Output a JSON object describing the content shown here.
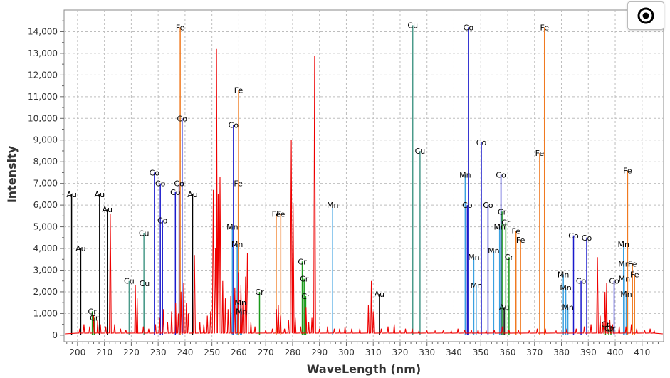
{
  "chart_data": {
    "type": "line",
    "xlabel": "WaveLength (nm)",
    "ylabel": "Intensity",
    "xlim": [
      195,
      418
    ],
    "ylim": [
      -300,
      15000
    ],
    "x_ticks": [
      200,
      210,
      220,
      230,
      240,
      250,
      260,
      270,
      280,
      290,
      300,
      310,
      320,
      330,
      340,
      350,
      360,
      370,
      380,
      390,
      400,
      410
    ],
    "y_ticks": [
      0,
      1000,
      2000,
      3000,
      4000,
      5000,
      6000,
      7000,
      8000,
      9000,
      10000,
      11000,
      12000,
      13000,
      14000
    ],
    "y_tick_labels": [
      "0",
      "1,000",
      "2,000",
      "3,000",
      "4,000",
      "5,000",
      "6,000",
      "7,000",
      "8,000",
      "9,000",
      "10,000",
      "11,000",
      "12,000",
      "13,000",
      "14,000"
    ],
    "grid": true,
    "element_colors": {
      "Au": "#000000",
      "Cr": "#1a9a1a",
      "Cu": "#4a9a8a",
      "Co": "#1a1acc",
      "Mn": "#3aa0e0",
      "Fe": "#f07a20"
    },
    "spectrum_color": "#ee0000",
    "spectrum_peaks": [
      {
        "x": 200.8,
        "y": 300
      },
      {
        "x": 202.4,
        "y": 500
      },
      {
        "x": 204.5,
        "y": 400
      },
      {
        "x": 206.0,
        "y": 900
      },
      {
        "x": 207.5,
        "y": 700
      },
      {
        "x": 208.5,
        "y": 500
      },
      {
        "x": 210.5,
        "y": 400
      },
      {
        "x": 212.2,
        "y": 5600
      },
      {
        "x": 213.8,
        "y": 500
      },
      {
        "x": 216.0,
        "y": 300
      },
      {
        "x": 218.0,
        "y": 250
      },
      {
        "x": 221.5,
        "y": 2300
      },
      {
        "x": 222.2,
        "y": 1700
      },
      {
        "x": 224.5,
        "y": 400
      },
      {
        "x": 226.5,
        "y": 300
      },
      {
        "x": 229.0,
        "y": 500
      },
      {
        "x": 230.5,
        "y": 800
      },
      {
        "x": 232.0,
        "y": 1200
      },
      {
        "x": 233.5,
        "y": 600
      },
      {
        "x": 235.0,
        "y": 1100
      },
      {
        "x": 236.5,
        "y": 1500
      },
      {
        "x": 237.5,
        "y": 1000
      },
      {
        "x": 238.5,
        "y": 2000
      },
      {
        "x": 239.5,
        "y": 2400
      },
      {
        "x": 240.5,
        "y": 1500
      },
      {
        "x": 241.2,
        "y": 1000
      },
      {
        "x": 243.5,
        "y": 3700
      },
      {
        "x": 245.5,
        "y": 600
      },
      {
        "x": 247.0,
        "y": 500
      },
      {
        "x": 248.3,
        "y": 900
      },
      {
        "x": 249.5,
        "y": 1100
      },
      {
        "x": 250.5,
        "y": 6700
      },
      {
        "x": 251.3,
        "y": 4000
      },
      {
        "x": 251.7,
        "y": 13200
      },
      {
        "x": 252.3,
        "y": 6500
      },
      {
        "x": 253.0,
        "y": 7300
      },
      {
        "x": 254.0,
        "y": 2500
      },
      {
        "x": 255.0,
        "y": 1700
      },
      {
        "x": 256.0,
        "y": 1200
      },
      {
        "x": 257.0,
        "y": 1800
      },
      {
        "x": 258.5,
        "y": 2200
      },
      {
        "x": 259.8,
        "y": 2900
      },
      {
        "x": 260.8,
        "y": 2300
      },
      {
        "x": 261.5,
        "y": 1500
      },
      {
        "x": 262.5,
        "y": 2700
      },
      {
        "x": 263.2,
        "y": 3800
      },
      {
        "x": 264.5,
        "y": 600
      },
      {
        "x": 266.0,
        "y": 400
      },
      {
        "x": 270.0,
        "y": 250
      },
      {
        "x": 272.5,
        "y": 300
      },
      {
        "x": 274.0,
        "y": 1200
      },
      {
        "x": 274.7,
        "y": 1400
      },
      {
        "x": 275.5,
        "y": 900
      },
      {
        "x": 277.0,
        "y": 300
      },
      {
        "x": 278.5,
        "y": 700
      },
      {
        "x": 279.5,
        "y": 9000
      },
      {
        "x": 280.2,
        "y": 6100
      },
      {
        "x": 281.0,
        "y": 800
      },
      {
        "x": 283.0,
        "y": 400
      },
      {
        "x": 285.0,
        "y": 1300
      },
      {
        "x": 286.0,
        "y": 600
      },
      {
        "x": 287.2,
        "y": 800
      },
      {
        "x": 288.2,
        "y": 12900
      },
      {
        "x": 290.0,
        "y": 300
      },
      {
        "x": 293.0,
        "y": 400
      },
      {
        "x": 295.5,
        "y": 300
      },
      {
        "x": 297.5,
        "y": 300
      },
      {
        "x": 299.5,
        "y": 400
      },
      {
        "x": 302.0,
        "y": 300
      },
      {
        "x": 305.0,
        "y": 300
      },
      {
        "x": 308.2,
        "y": 1400
      },
      {
        "x": 309.3,
        "y": 2500
      },
      {
        "x": 310.0,
        "y": 1100
      },
      {
        "x": 313.0,
        "y": 300
      },
      {
        "x": 315.5,
        "y": 400
      },
      {
        "x": 317.8,
        "y": 500
      },
      {
        "x": 320.0,
        "y": 200
      },
      {
        "x": 322.0,
        "y": 300
      },
      {
        "x": 324.5,
        "y": 300
      },
      {
        "x": 327.0,
        "y": 200
      },
      {
        "x": 330.0,
        "y": 200
      },
      {
        "x": 333.0,
        "y": 200
      },
      {
        "x": 336.0,
        "y": 200
      },
      {
        "x": 339.0,
        "y": 200
      },
      {
        "x": 341.5,
        "y": 300
      },
      {
        "x": 344.0,
        "y": 250
      },
      {
        "x": 346.5,
        "y": 250
      },
      {
        "x": 349.0,
        "y": 250
      },
      {
        "x": 352.0,
        "y": 200
      },
      {
        "x": 355.0,
        "y": 250
      },
      {
        "x": 358.0,
        "y": 400
      },
      {
        "x": 360.5,
        "y": 250
      },
      {
        "x": 364.0,
        "y": 250
      },
      {
        "x": 368.0,
        "y": 200
      },
      {
        "x": 371.0,
        "y": 300
      },
      {
        "x": 374.0,
        "y": 300
      },
      {
        "x": 378.0,
        "y": 200
      },
      {
        "x": 382.0,
        "y": 300
      },
      {
        "x": 385.5,
        "y": 300
      },
      {
        "x": 388.5,
        "y": 400
      },
      {
        "x": 391.0,
        "y": 500
      },
      {
        "x": 393.4,
        "y": 3600
      },
      {
        "x": 394.4,
        "y": 900
      },
      {
        "x": 395.5,
        "y": 600
      },
      {
        "x": 396.2,
        "y": 2000
      },
      {
        "x": 396.8,
        "y": 2400
      },
      {
        "x": 398.0,
        "y": 700
      },
      {
        "x": 399.0,
        "y": 500
      },
      {
        "x": 401.5,
        "y": 400
      },
      {
        "x": 404.0,
        "y": 400
      },
      {
        "x": 406.0,
        "y": 500
      },
      {
        "x": 408.0,
        "y": 300
      },
      {
        "x": 411.0,
        "y": 200
      },
      {
        "x": 413.0,
        "y": 300
      },
      {
        "x": 414.5,
        "y": 200
      }
    ],
    "spectral_lines": [
      {
        "element": "Au",
        "x": 197.8,
        "y": 6500
      },
      {
        "element": "Au",
        "x": 201.2,
        "y": 4000
      },
      {
        "element": "Cr",
        "x": 205.5,
        "y": 1100
      },
      {
        "element": "Cr",
        "x": 206.2,
        "y": 800
      },
      {
        "element": "Au",
        "x": 208.2,
        "y": 6500
      },
      {
        "element": "Au",
        "x": 211.1,
        "y": 5800
      },
      {
        "element": "Cu",
        "x": 219.2,
        "y": 2500
      },
      {
        "element": "Cu",
        "x": 224.7,
        "y": 4700
      },
      {
        "element": "Cu",
        "x": 224.9,
        "y": 2400
      },
      {
        "element": "Co",
        "x": 228.6,
        "y": 7500
      },
      {
        "element": "Co",
        "x": 230.8,
        "y": 7000
      },
      {
        "element": "Co",
        "x": 231.6,
        "y": 5300
      },
      {
        "element": "Co",
        "x": 236.4,
        "y": 6600
      },
      {
        "element": "Co",
        "x": 237.8,
        "y": 7000
      },
      {
        "element": "Fe",
        "x": 238.2,
        "y": 14200
      },
      {
        "element": "Co",
        "x": 238.9,
        "y": 10000
      },
      {
        "element": "Au",
        "x": 242.8,
        "y": 6500
      },
      {
        "element": "Co",
        "x": 258.0,
        "y": 9700
      },
      {
        "element": "Fe",
        "x": 259.9,
        "y": 11300
      },
      {
        "element": "Fe",
        "x": 259.8,
        "y": 7000
      },
      {
        "element": "Mn",
        "x": 257.6,
        "y": 5000
      },
      {
        "element": "Mn",
        "x": 259.4,
        "y": 4200
      },
      {
        "element": "Mn",
        "x": 260.6,
        "y": 1500
      },
      {
        "element": "Mn",
        "x": 261.0,
        "y": 1100
      },
      {
        "element": "Cr",
        "x": 267.7,
        "y": 2000
      },
      {
        "element": "Fe",
        "x": 273.9,
        "y": 5600
      },
      {
        "element": "Fe",
        "x": 275.6,
        "y": 5600
      },
      {
        "element": "Cr",
        "x": 283.6,
        "y": 3400
      },
      {
        "element": "Cr",
        "x": 284.3,
        "y": 2600
      },
      {
        "element": "Cr",
        "x": 284.9,
        "y": 1800
      },
      {
        "element": "Mn",
        "x": 294.9,
        "y": 6000
      },
      {
        "element": "Au",
        "x": 312.3,
        "y": 1900
      },
      {
        "element": "Cu",
        "x": 324.7,
        "y": 14300
      },
      {
        "element": "Cu",
        "x": 327.4,
        "y": 8500
      },
      {
        "element": "Mn",
        "x": 344.2,
        "y": 7400
      },
      {
        "element": "Co",
        "x": 345.0,
        "y": 6000
      },
      {
        "element": "Co",
        "x": 345.4,
        "y": 14200
      },
      {
        "element": "Mn",
        "x": 347.4,
        "y": 3600
      },
      {
        "element": "Mn",
        "x": 348.3,
        "y": 2300
      },
      {
        "element": "Co",
        "x": 350.2,
        "y": 8900
      },
      {
        "element": "Co",
        "x": 352.7,
        "y": 6000
      },
      {
        "element": "Mn",
        "x": 354.8,
        "y": 3900
      },
      {
        "element": "Cr",
        "x": 357.9,
        "y": 5700
      },
      {
        "element": "Co",
        "x": 357.5,
        "y": 7400
      },
      {
        "element": "Mn",
        "x": 357.0,
        "y": 5000
      },
      {
        "element": "Cr",
        "x": 359.3,
        "y": 5200
      },
      {
        "element": "Au",
        "x": 358.7,
        "y": 1300
      },
      {
        "element": "Cr",
        "x": 360.5,
        "y": 3600
      },
      {
        "element": "Fe",
        "x": 363.1,
        "y": 4800
      },
      {
        "element": "Fe",
        "x": 364.8,
        "y": 4400
      },
      {
        "element": "Fe",
        "x": 371.9,
        "y": 8400
      },
      {
        "element": "Fe",
        "x": 373.7,
        "y": 14200
      },
      {
        "element": "Mn",
        "x": 380.7,
        "y": 2800
      },
      {
        "element": "Mn",
        "x": 381.6,
        "y": 2200
      },
      {
        "element": "Mn",
        "x": 382.4,
        "y": 1300
      },
      {
        "element": "Co",
        "x": 384.5,
        "y": 4600
      },
      {
        "element": "Co",
        "x": 387.3,
        "y": 2500
      },
      {
        "element": "Co",
        "x": 389.4,
        "y": 4500
      },
      {
        "element": "Cr",
        "x": 396.4,
        "y": 500
      },
      {
        "element": "Cr",
        "x": 397.6,
        "y": 300
      },
      {
        "element": "Cr",
        "x": 398.4,
        "y": 300
      },
      {
        "element": "Co",
        "x": 399.6,
        "y": 2500
      },
      {
        "element": "Mn",
        "x": 403.1,
        "y": 4200
      },
      {
        "element": "Mn",
        "x": 403.3,
        "y": 3300
      },
      {
        "element": "Mn",
        "x": 403.4,
        "y": 2600
      },
      {
        "element": "Mn",
        "x": 404.1,
        "y": 1900
      },
      {
        "element": "Fe",
        "x": 404.6,
        "y": 7600
      },
      {
        "element": "Fe",
        "x": 406.4,
        "y": 3300
      },
      {
        "element": "Fe",
        "x": 407.2,
        "y": 2800
      }
    ]
  },
  "toolbar": {
    "target_icon": "target-icon"
  }
}
